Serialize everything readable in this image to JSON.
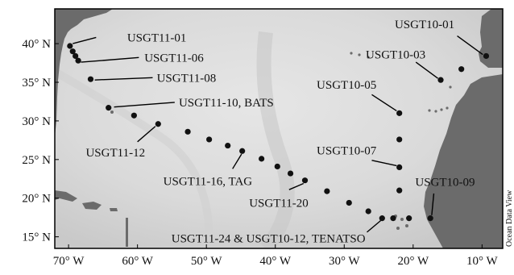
{
  "map": {
    "credit": "Ocean Data View",
    "colors": {
      "land": "#6b6b6b",
      "ocean_light": "#dcdcdc",
      "ocean_mid": "#cfcfcf",
      "station": "#111111",
      "frame": "#000000"
    },
    "lon_range": [
      -72,
      -7
    ],
    "lat_range": [
      13.5,
      44.5
    ],
    "lon_ticks": [
      {
        "value": -70,
        "label": "70° W"
      },
      {
        "value": -60,
        "label": "60° W"
      },
      {
        "value": -50,
        "label": "50° W"
      },
      {
        "value": -40,
        "label": "40° W"
      },
      {
        "value": -30,
        "label": "30° W"
      },
      {
        "value": -20,
        "label": "20° W"
      },
      {
        "value": -10,
        "label": "10° W"
      }
    ],
    "lat_ticks": [
      {
        "value": 40,
        "label": "40° N"
      },
      {
        "value": 35,
        "label": "35° N"
      },
      {
        "value": 30,
        "label": "30° N"
      },
      {
        "value": 25,
        "label": "25° N"
      },
      {
        "value": 20,
        "label": "20° N"
      },
      {
        "value": 15,
        "label": "15° N"
      }
    ],
    "stations": [
      {
        "lon": -69.8,
        "lat": 39.7
      },
      {
        "lon": -69.4,
        "lat": 39.0
      },
      {
        "lon": -69.0,
        "lat": 38.4
      },
      {
        "lon": -68.6,
        "lat": 37.8
      },
      {
        "lon": -66.8,
        "lat": 35.4
      },
      {
        "lon": -64.2,
        "lat": 31.7
      },
      {
        "lon": -60.5,
        "lat": 30.7
      },
      {
        "lon": -57.0,
        "lat": 29.6
      },
      {
        "lon": -52.7,
        "lat": 28.6
      },
      {
        "lon": -49.6,
        "lat": 27.6
      },
      {
        "lon": -46.9,
        "lat": 26.8
      },
      {
        "lon": -44.8,
        "lat": 26.1
      },
      {
        "lon": -42.0,
        "lat": 25.1
      },
      {
        "lon": -39.7,
        "lat": 24.1
      },
      {
        "lon": -37.8,
        "lat": 23.2
      },
      {
        "lon": -35.7,
        "lat": 22.3
      },
      {
        "lon": -32.5,
        "lat": 20.9
      },
      {
        "lon": -29.3,
        "lat": 19.4
      },
      {
        "lon": -26.5,
        "lat": 18.3
      },
      {
        "lon": -24.5,
        "lat": 17.4
      },
      {
        "lon": -22.9,
        "lat": 17.4
      },
      {
        "lon": -20.6,
        "lat": 17.4
      },
      {
        "lon": -17.5,
        "lat": 17.4
      },
      {
        "lon": -22.0,
        "lat": 21.0
      },
      {
        "lon": -22.0,
        "lat": 24.0
      },
      {
        "lon": -22.0,
        "lat": 27.6
      },
      {
        "lon": -22.0,
        "lat": 31.0
      },
      {
        "lon": -16.0,
        "lat": 35.3
      },
      {
        "lon": -13.0,
        "lat": 36.7
      },
      {
        "lon": -9.4,
        "lat": 38.4
      }
    ],
    "labels": [
      {
        "text": "USGT11-01",
        "lon": -61.5,
        "lat": 40.8,
        "anchor": "start",
        "line": [
          [
            -66.0,
            40.8
          ],
          [
            -69.4,
            40.0
          ]
        ]
      },
      {
        "text": "USGT11-06",
        "lon": -59.0,
        "lat": 38.2,
        "anchor": "start",
        "line": [
          [
            -59.8,
            38.2
          ],
          [
            -68.2,
            37.6
          ]
        ]
      },
      {
        "text": "USGT11-08",
        "lon": -57.2,
        "lat": 35.6,
        "anchor": "start",
        "line": [
          [
            -57.8,
            35.6
          ],
          [
            -66.2,
            35.3
          ]
        ]
      },
      {
        "text": "USGT11-10, BATS",
        "lon": -54.0,
        "lat": 32.4,
        "anchor": "start",
        "line": [
          [
            -54.6,
            32.4
          ],
          [
            -63.4,
            31.8
          ]
        ]
      },
      {
        "text": "USGT11-12",
        "lon": -63.2,
        "lat": 25.9,
        "anchor": "middle",
        "line": [
          [
            -60.0,
            27.3
          ],
          [
            -57.4,
            29.3
          ]
        ]
      },
      {
        "text": "USGT11-16, TAG",
        "lon": -49.8,
        "lat": 22.2,
        "anchor": "middle",
        "line": [
          [
            -46.2,
            23.8
          ],
          [
            -44.9,
            25.7
          ]
        ]
      },
      {
        "text": "USGT11-20",
        "lon": -39.5,
        "lat": 19.4,
        "anchor": "middle",
        "line": [
          [
            -38.0,
            21.1
          ],
          [
            -35.9,
            21.9
          ]
        ]
      },
      {
        "text": "USGT11-24 & USGT10-12, TENATSO",
        "lon": -41.0,
        "lat": 14.8,
        "anchor": "middle",
        "line": [
          [
            -26.7,
            15.6
          ],
          [
            -24.7,
            17.1
          ]
        ]
      },
      {
        "text": "USGT10-01",
        "lon": -14.0,
        "lat": 42.5,
        "anchor": "end",
        "line": [
          [
            -13.6,
            41.0
          ],
          [
            -9.9,
            38.6
          ]
        ]
      },
      {
        "text": "USGT10-03",
        "lon": -18.2,
        "lat": 38.6,
        "anchor": "end",
        "line": [
          [
            -19.6,
            37.6
          ],
          [
            -16.4,
            35.5
          ]
        ]
      },
      {
        "text": "USGT10-05",
        "lon": -34.0,
        "lat": 34.7,
        "anchor": "start",
        "line": [
          [
            -26.0,
            33.4
          ],
          [
            -22.4,
            31.3
          ]
        ]
      },
      {
        "text": "USGT10-07",
        "lon": -34.0,
        "lat": 26.2,
        "anchor": "start",
        "line": [
          [
            -26.0,
            24.9
          ],
          [
            -22.4,
            24.2
          ]
        ]
      },
      {
        "text": "USGT10-09",
        "lon": -19.7,
        "lat": 22.1,
        "anchor": "start",
        "line": [
          [
            -17.0,
            20.6
          ],
          [
            -17.3,
            17.8
          ]
        ]
      }
    ]
  }
}
